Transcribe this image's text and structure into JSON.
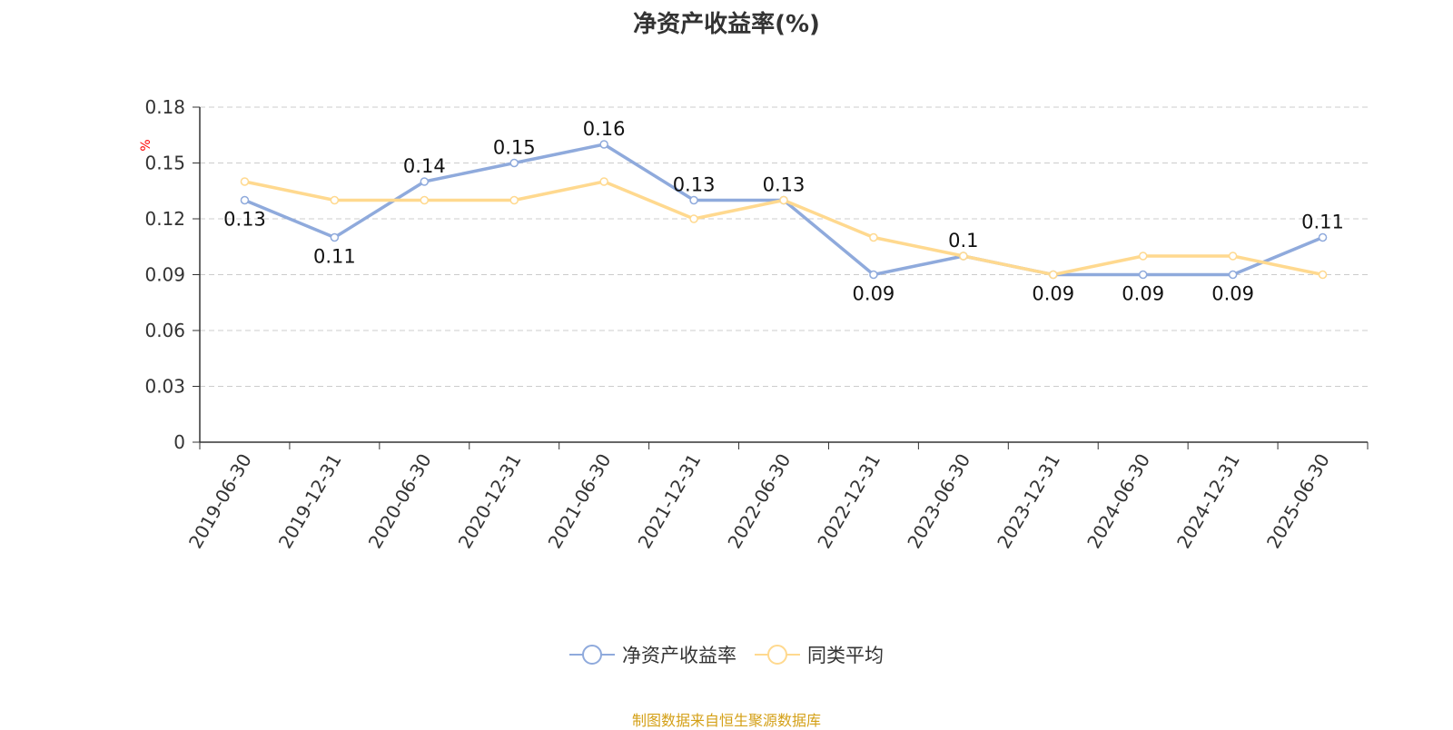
{
  "title": "净资产收益率(%)",
  "source_note": "制图数据来自恒生聚源数据库",
  "colors": {
    "series1": "#8faadc",
    "series2": "#ffd98f",
    "grid": "#cccccc",
    "axis": "#333333",
    "unit": "#ff0000",
    "source": "#d4a017"
  },
  "chart_data": {
    "type": "line",
    "title": "净资产收益率(%)",
    "ylabel": "%",
    "ylim": [
      0,
      0.18
    ],
    "yticks": [
      "0",
      "0.03",
      "0.06",
      "0.09",
      "0.12",
      "0.15",
      "0.18"
    ],
    "grid": true,
    "legend_position": "bottom",
    "categories": [
      "2019-06-30",
      "2019-12-31",
      "2020-06-30",
      "2020-12-31",
      "2021-06-30",
      "2021-12-31",
      "2022-06-30",
      "2022-12-31",
      "2023-06-30",
      "2023-12-31",
      "2024-06-30",
      "2024-12-31",
      "2025-06-30"
    ],
    "series": [
      {
        "name": "净资产收益率",
        "values": [
          0.13,
          0.11,
          0.14,
          0.15,
          0.16,
          0.13,
          0.13,
          0.09,
          0.1,
          0.09,
          0.09,
          0.09,
          0.11
        ],
        "labels": [
          "0.13",
          "0.11",
          "0.14",
          "0.15",
          "0.16",
          "0.13",
          "0.13",
          "0.09",
          "0.1",
          "0.09",
          "0.09",
          "0.09",
          "0.11"
        ]
      },
      {
        "name": "同类平均",
        "values": [
          0.14,
          0.13,
          0.13,
          0.13,
          0.14,
          0.12,
          0.13,
          0.11,
          0.1,
          0.09,
          0.1,
          0.1,
          0.09
        ]
      }
    ]
  }
}
